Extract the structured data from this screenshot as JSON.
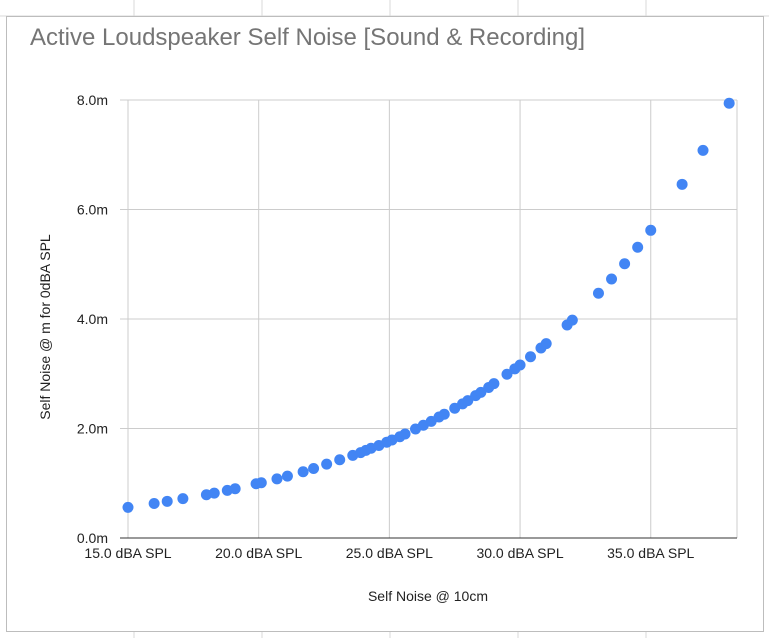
{
  "chart_data": {
    "type": "scatter",
    "title": "Active Loudspeaker Self Noise [Sound & Recording]",
    "xlabel": "Self Noise @ 10cm",
    "ylabel": "Self Noise @ m for 0dBA SPL",
    "xlim": [
      15,
      38.3
    ],
    "ylim": [
      0,
      8
    ],
    "x_ticks": [
      15,
      20,
      25,
      30,
      35
    ],
    "x_tick_labels": [
      "15.0 dBA SPL",
      "20.0 dBA SPL",
      "25.0 dBA SPL",
      "30.0 dBA SPL",
      "35.0 dBA SPL"
    ],
    "y_ticks": [
      0,
      2,
      4,
      6,
      8
    ],
    "y_tick_labels": [
      "0.0m",
      "2.0m",
      "4.0m",
      "6.0m",
      "8.0m"
    ],
    "grid": true,
    "legend": "none",
    "series": [
      {
        "color": "#4285f4",
        "points": [
          [
            15.0,
            0.56
          ],
          [
            16.0,
            0.63
          ],
          [
            16.5,
            0.67
          ],
          [
            17.1,
            0.72
          ],
          [
            18.0,
            0.79
          ],
          [
            18.3,
            0.82
          ],
          [
            18.8,
            0.87
          ],
          [
            19.1,
            0.9
          ],
          [
            19.9,
            0.99
          ],
          [
            20.1,
            1.01
          ],
          [
            20.7,
            1.08
          ],
          [
            21.1,
            1.13
          ],
          [
            21.7,
            1.21
          ],
          [
            22.1,
            1.27
          ],
          [
            22.6,
            1.35
          ],
          [
            23.1,
            1.43
          ],
          [
            23.6,
            1.51
          ],
          [
            23.9,
            1.56
          ],
          [
            24.1,
            1.6
          ],
          [
            24.3,
            1.64
          ],
          [
            24.6,
            1.69
          ],
          [
            24.9,
            1.75
          ],
          [
            25.1,
            1.79
          ],
          [
            25.4,
            1.85
          ],
          [
            25.6,
            1.9
          ],
          [
            26.0,
            1.99
          ],
          [
            26.3,
            2.06
          ],
          [
            26.6,
            2.13
          ],
          [
            26.9,
            2.21
          ],
          [
            27.1,
            2.26
          ],
          [
            27.5,
            2.37
          ],
          [
            27.8,
            2.45
          ],
          [
            28.0,
            2.51
          ],
          [
            28.3,
            2.6
          ],
          [
            28.5,
            2.66
          ],
          [
            28.8,
            2.75
          ],
          [
            29.0,
            2.82
          ],
          [
            29.5,
            2.99
          ],
          [
            29.8,
            3.09
          ],
          [
            30.0,
            3.16
          ],
          [
            30.4,
            3.31
          ],
          [
            30.8,
            3.47
          ],
          [
            31.0,
            3.55
          ],
          [
            31.8,
            3.89
          ],
          [
            32.0,
            3.98
          ],
          [
            33.0,
            4.47
          ],
          [
            33.5,
            4.73
          ],
          [
            34.0,
            5.01
          ],
          [
            34.5,
            5.31
          ],
          [
            35.0,
            5.62
          ],
          [
            36.2,
            6.46
          ],
          [
            37.0,
            7.08
          ],
          [
            38.0,
            7.94
          ]
        ]
      }
    ]
  }
}
